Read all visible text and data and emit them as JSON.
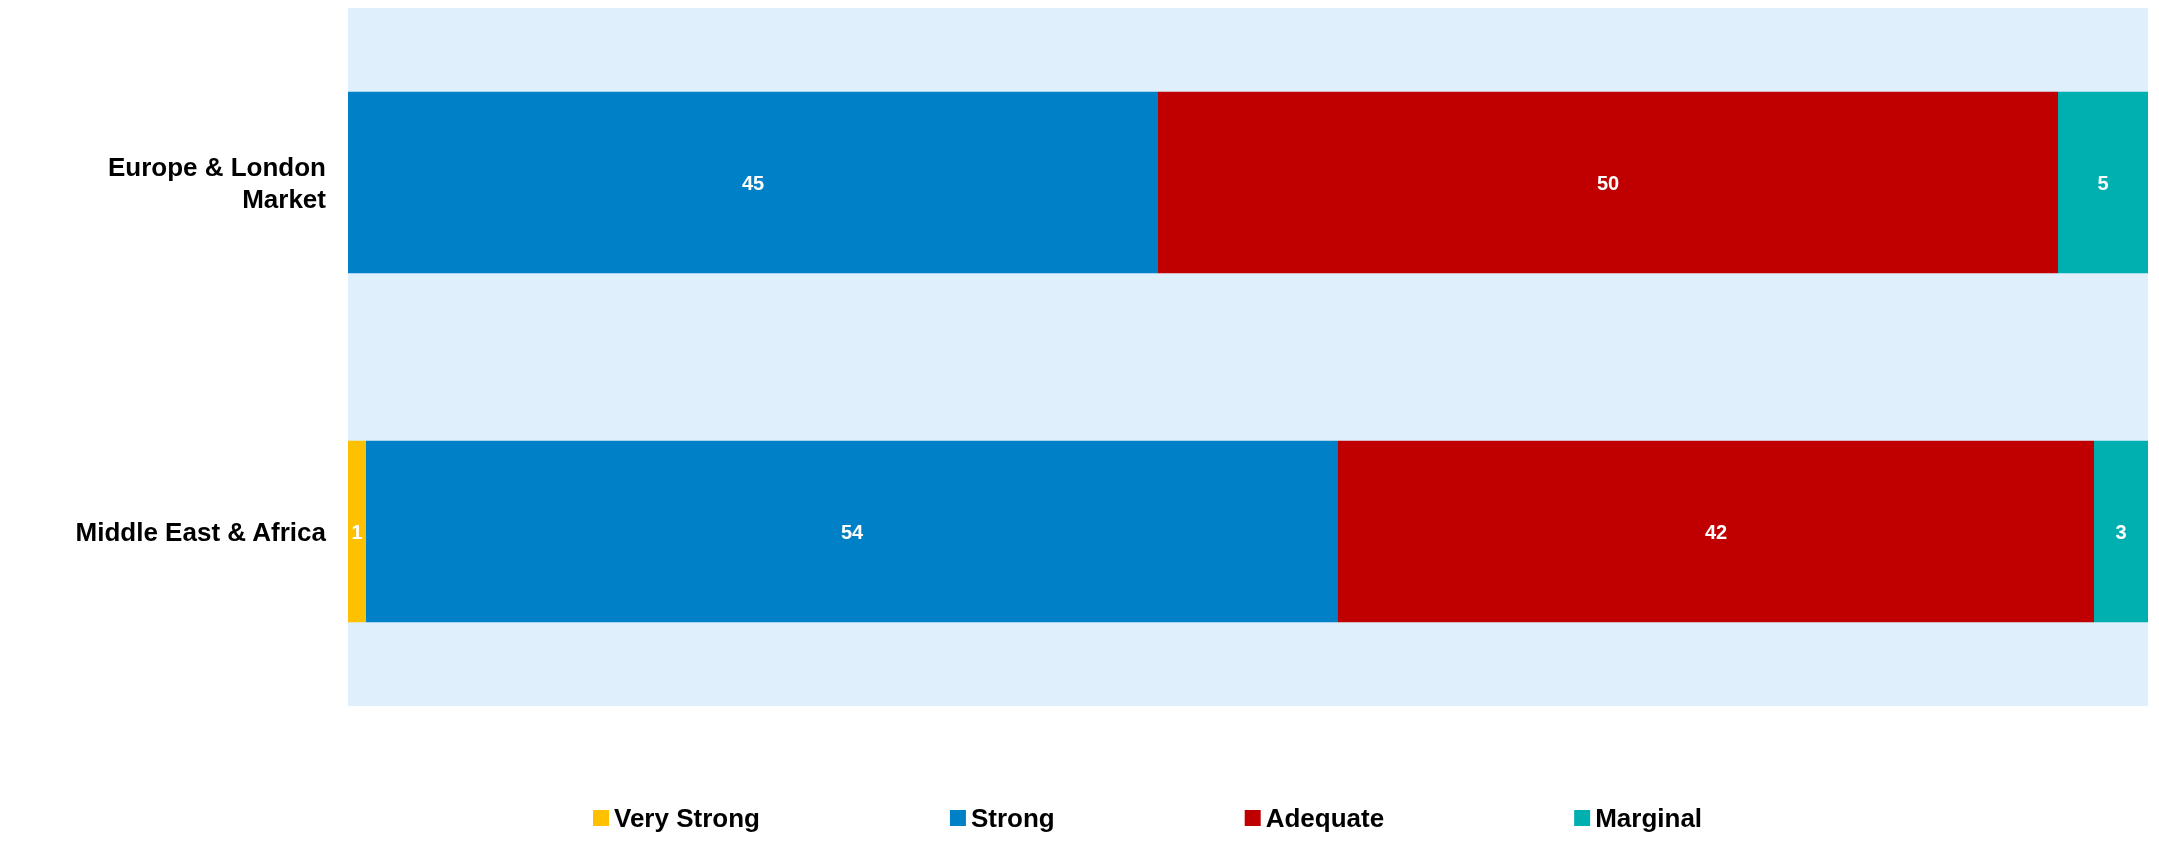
{
  "chart_data": {
    "type": "bar",
    "orientation": "horizontal",
    "stacked": true,
    "categories": [
      "Europe & London Market",
      "Middle East & Africa"
    ],
    "series": [
      {
        "name": "Very Strong",
        "color": "#ffc000",
        "values": [
          null,
          1
        ]
      },
      {
        "name": "Strong",
        "color": "#0080c6",
        "values": [
          45,
          54
        ]
      },
      {
        "name": "Adequate",
        "color": "#c00000",
        "values": [
          50,
          42
        ]
      },
      {
        "name": "Marginal",
        "color": "#00b0b0",
        "values": [
          5,
          3
        ]
      }
    ],
    "data_labels": true,
    "legend": "bottom",
    "tick_labels": "y"
  }
}
